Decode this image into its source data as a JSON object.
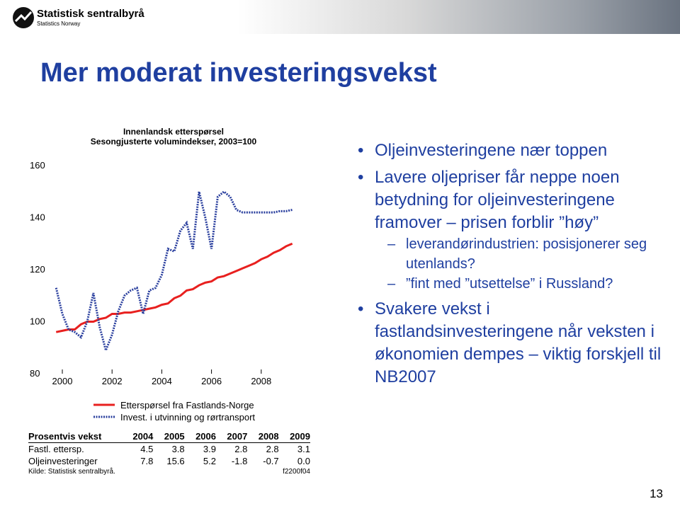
{
  "header": {
    "org": "Statistisk sentralbyrå",
    "org_en": "Statistics Norway"
  },
  "slide_title": "Mer moderat investeringsvekst",
  "bullets": [
    {
      "text": "Oljeinvesteringene nær toppen",
      "sub": []
    },
    {
      "text": "Lavere oljepriser får neppe noen betydning for oljeinvesteringene framover – prisen forblir ”høy”",
      "sub": [
        "leverandørindustrien: posisjonerer seg utenlands?",
        "”fint med ”utsettelse” i Russland?"
      ]
    },
    {
      "text": "Svakere vekst i fastlandsinvesteringene når veksten i økonomien dempes – viktig forskjell til NB2007",
      "sub": []
    }
  ],
  "page_number": "13",
  "chart_data": {
    "type": "line",
    "title": "Innenlandsk etterspørsel",
    "subtitle": "Sesongjusterte volumindekser, 2003=100",
    "x": [
      1999.75,
      2000,
      2000.25,
      2000.5,
      2000.75,
      2001,
      2001.25,
      2001.5,
      2001.75,
      2002,
      2002.25,
      2002.5,
      2002.75,
      2003,
      2003.25,
      2003.5,
      2003.75,
      2004,
      2004.25,
      2004.5,
      2004.75,
      2005,
      2005.25,
      2005.5,
      2005.75,
      2006,
      2006.25,
      2006.5,
      2006.75,
      2007,
      2007.25,
      2007.5,
      2007.75,
      2008,
      2008.25,
      2008.5,
      2008.75,
      2009,
      2009.25
    ],
    "series": [
      {
        "name": "Etterspørsel fra Fastlands-Norge",
        "color": "#e8201f",
        "style": "solid",
        "values": [
          96,
          96.5,
          97,
          97,
          99,
          100,
          100,
          101,
          101.5,
          103,
          103,
          103.5,
          103.5,
          104,
          104.5,
          105,
          105.5,
          106.5,
          107,
          109,
          110,
          112,
          112.5,
          114,
          115,
          115.5,
          117,
          117.5,
          118.5,
          119.5,
          120.5,
          121.5,
          122.5,
          124,
          125,
          126.5,
          127.5,
          129,
          130
        ]
      },
      {
        "name": "Invest. i utvinning og rørtransport",
        "color": "#2a3f9e",
        "style": "dotted",
        "values": [
          113,
          103,
          97,
          96,
          94,
          100,
          111,
          98,
          89,
          95,
          104,
          110,
          112,
          113,
          103,
          112,
          113,
          118,
          128,
          127,
          135,
          138,
          128,
          150,
          140,
          128,
          148,
          150,
          148,
          143,
          142,
          142,
          142,
          142,
          142,
          142,
          142.5,
          142.5,
          143
        ]
      }
    ],
    "xlim": [
      1999.4,
      2009.6
    ],
    "xticks": [
      2000,
      2002,
      2004,
      2006,
      2008
    ],
    "ylim": [
      80,
      160
    ],
    "yticks": [
      80,
      100,
      120,
      140,
      160
    ],
    "grid": false
  },
  "table": {
    "header": [
      "Prosentvis vekst",
      "2004",
      "2005",
      "2006",
      "2007",
      "2008",
      "2009"
    ],
    "rows": [
      [
        "Fastl. ettersp.",
        "4.5",
        "3.8",
        "3.9",
        "2.8",
        "2.8",
        "3.1"
      ],
      [
        "Oljeinvesteringer",
        "7.8",
        "15.6",
        "5.2",
        "-1.8",
        "-0.7",
        "0.0"
      ]
    ]
  },
  "source": "Kilde: Statistisk sentralbyrå.",
  "code": "f2200f04"
}
